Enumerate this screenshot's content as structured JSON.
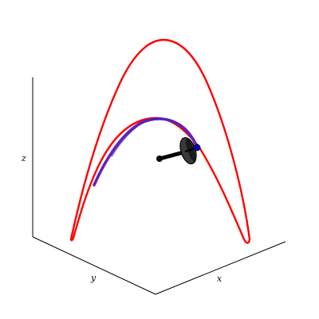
{
  "axes": {
    "x_label": "x",
    "y_label": "y",
    "z_label": "z",
    "axis_color": "#000000",
    "grid": false
  },
  "curves": {
    "outer_curve_color": "#ff0000",
    "traced_path_color": "#6a1fb5",
    "trace_head_color": "#0000cc"
  },
  "pendulum": {
    "rod_color": "#000000",
    "disk_color": "#3a3a3a",
    "pivot_color": "#000000"
  }
}
